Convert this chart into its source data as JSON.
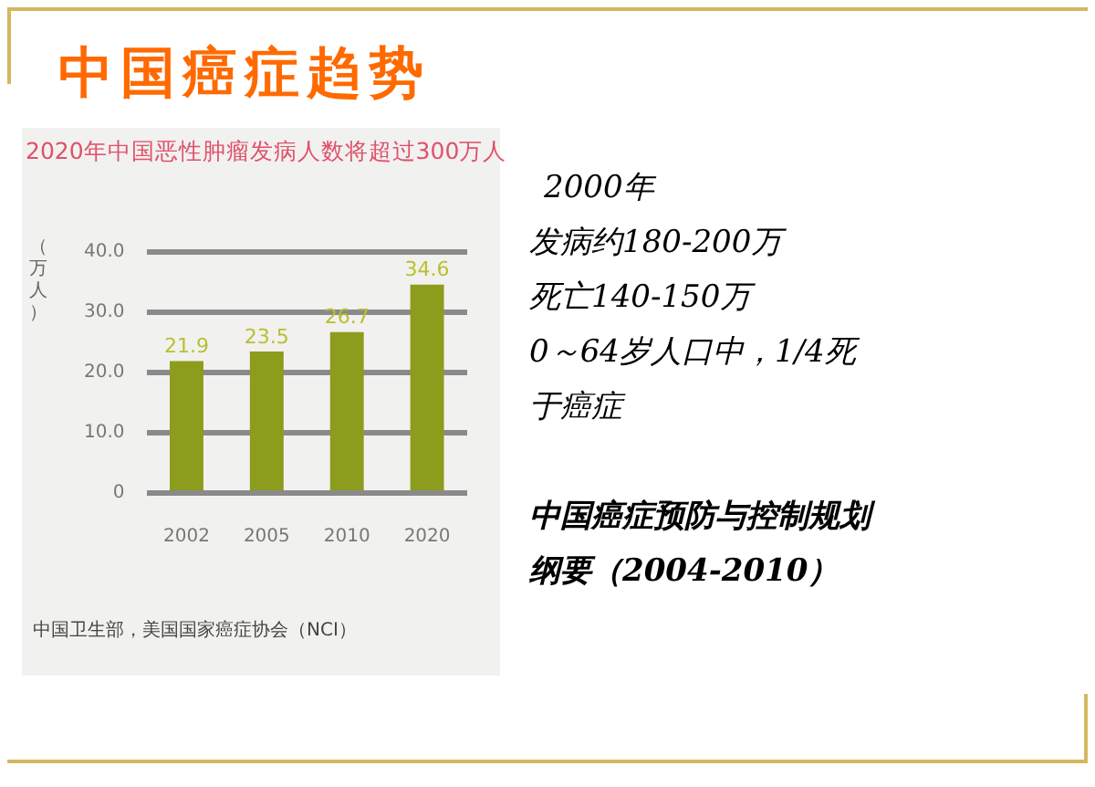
{
  "chart_data": {
    "type": "bar",
    "title": "中国癌症趋势",
    "subtitle": "2020年中国恶性肿瘤发病人数将超过300万人",
    "ylabel": "（万人）",
    "categories": [
      "2002",
      "2005",
      "2010",
      "2020"
    ],
    "values": [
      21.9,
      23.5,
      26.7,
      34.6
    ],
    "color": "#8c9c1c",
    "ylim": [
      0,
      40
    ],
    "yticks": [
      {
        "value": 0,
        "label": "0"
      },
      {
        "value": 10,
        "label": "10.0"
      },
      {
        "value": 20,
        "label": "20.0"
      },
      {
        "value": 30,
        "label": "30.0"
      },
      {
        "value": 40,
        "label": "40.0"
      }
    ],
    "grid": "y",
    "data_labels": true,
    "annotations": [
      "中国卫生部，美国国家癌症协会（NCI）",
      "2000年",
      "发病约180-200万",
      "死亡140-150万",
      "0～64岁人口中，1/4死于癌症",
      "中国癌症预防与控制规划纲要（2004-2010）"
    ]
  }
}
